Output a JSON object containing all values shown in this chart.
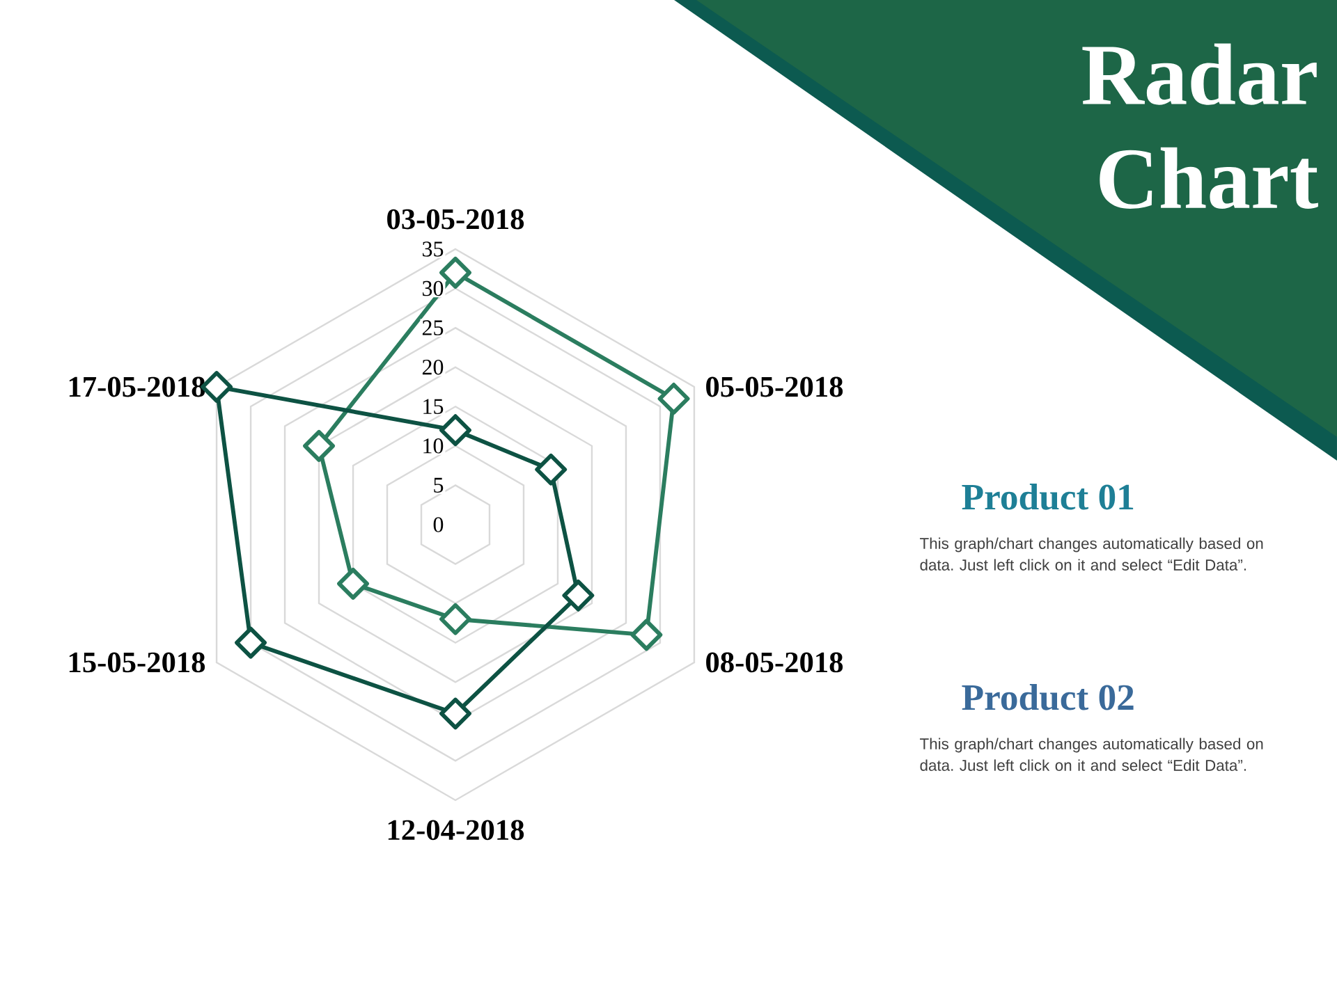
{
  "chart_data": {
    "type": "radar",
    "title": "Radar Chart",
    "categories": [
      "03-05-2018",
      "05-05-2018",
      "08-05-2018",
      "12-04-2018",
      "15-05-2018",
      "17-05-2018"
    ],
    "series": [
      {
        "color": "#2b7d5f",
        "values": [
          32,
          32,
          28,
          12,
          15,
          20
        ]
      },
      {
        "color": "#0d5243",
        "values": [
          12,
          14,
          18,
          24,
          30,
          35
        ]
      }
    ],
    "ylim": [
      0,
      35
    ],
    "yticks": [
      0,
      5,
      10,
      15,
      20,
      25,
      30,
      35
    ],
    "grid": true,
    "marker": "diamond",
    "annotations": [
      "Product 01",
      "This graph/chart changes automatically based on data. Just left click on it and select “Edit Data”.",
      "Product 02",
      "This graph/chart changes automatically based on data. Just left click on it and select “Edit Data”."
    ]
  }
}
